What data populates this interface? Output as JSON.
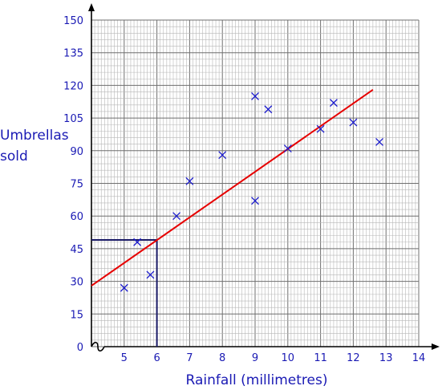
{
  "chart_data": {
    "type": "scatter",
    "xlabel": "Rainfall (millimetres)",
    "ylabel_lines": [
      "Umbrellas",
      "sold"
    ],
    "x_ticks": [
      5,
      6,
      7,
      8,
      9,
      10,
      11,
      12,
      13,
      14
    ],
    "y_ticks": [
      0,
      15,
      30,
      45,
      60,
      75,
      90,
      105,
      120,
      135,
      150
    ],
    "xlim": [
      4,
      14
    ],
    "ylim": [
      0,
      150
    ],
    "x_axis_break": true,
    "grid": true,
    "points": [
      {
        "x": 5.0,
        "y": 27
      },
      {
        "x": 5.4,
        "y": 48
      },
      {
        "x": 5.8,
        "y": 33
      },
      {
        "x": 6.6,
        "y": 60
      },
      {
        "x": 7.0,
        "y": 76
      },
      {
        "x": 8.0,
        "y": 88
      },
      {
        "x": 9.0,
        "y": 115
      },
      {
        "x": 9.0,
        "y": 67
      },
      {
        "x": 9.4,
        "y": 109
      },
      {
        "x": 10.0,
        "y": 91
      },
      {
        "x": 11.0,
        "y": 100
      },
      {
        "x": 11.4,
        "y": 112
      },
      {
        "x": 12.0,
        "y": 103
      },
      {
        "x": 12.8,
        "y": 94
      }
    ],
    "trend_line": {
      "from": {
        "x": 4,
        "y": 28
      },
      "to": {
        "x": 12.6,
        "y": 118
      }
    },
    "reading_guide": {
      "x": 6,
      "y": 49
    },
    "colors": {
      "markers": "#1a1acc",
      "trend_line": "#e60000",
      "guide": "#1a1a66",
      "text": "#1a1ab4"
    }
  }
}
